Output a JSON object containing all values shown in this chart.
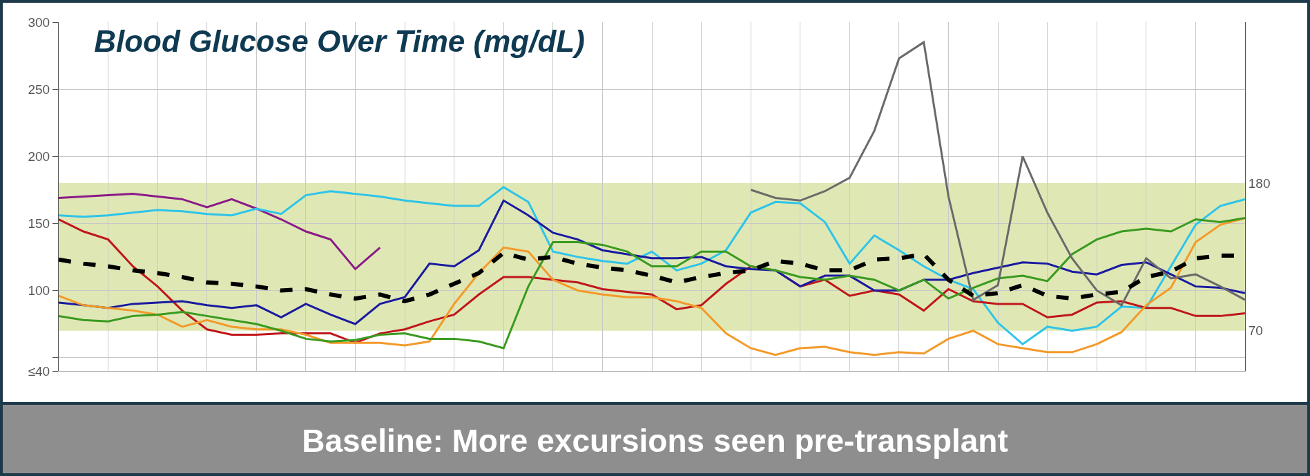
{
  "chart_data": {
    "type": "line",
    "title": "Blood Glucose Over Time (mg/dL)",
    "annotations": [
      "Baseline: More excursions seen pre-transplant"
    ],
    "categories": [
      null,
      null,
      null,
      null,
      null,
      null,
      null,
      null,
      null,
      null,
      null,
      null,
      null,
      null,
      null,
      null,
      null,
      null,
      null,
      null,
      null,
      null,
      null,
      null,
      null,
      null,
      null,
      null,
      null,
      null,
      null,
      null,
      null,
      null,
      null,
      null,
      null,
      null,
      null,
      null,
      null,
      null,
      null,
      null,
      null,
      null,
      null,
      null,
      null
    ],
    "ylim": [
      40,
      300
    ],
    "yticks": [
      {
        "value": 40,
        "label": "≤40"
      },
      {
        "value": 50,
        "label": null
      },
      100,
      150,
      200,
      250,
      300
    ],
    "y2lim": [
      40,
      300
    ],
    "y2ticks": [
      70,
      180
    ],
    "bands": [
      {
        "axis": "y",
        "from": 70,
        "to": 180,
        "color": "#dfe8b4"
      }
    ],
    "grid": true,
    "tick_labels": "y",
    "series": [
      {
        "color": "#8b1a89",
        "values": [
          169,
          170,
          171,
          172,
          170,
          168,
          162,
          168,
          161,
          153,
          144,
          138,
          116,
          132,
          null,
          null,
          null,
          null,
          null,
          null,
          null,
          null,
          null,
          null,
          null,
          null,
          null,
          null,
          null,
          null,
          null,
          null,
          null,
          null,
          null,
          null,
          null,
          null,
          null,
          null,
          null,
          null,
          null,
          null,
          null,
          null,
          null,
          null,
          null
        ]
      },
      {
        "color": "#2ec4ea",
        "values": [
          156,
          155,
          156,
          158,
          160,
          159,
          157,
          156,
          161,
          157,
          171,
          174,
          172,
          170,
          167,
          165,
          163,
          163,
          177,
          166,
          129,
          125,
          122,
          120,
          129,
          115,
          120,
          130,
          158,
          166,
          165,
          151,
          120,
          141,
          130,
          118,
          108,
          101,
          76,
          60,
          73,
          70,
          73,
          88,
          87,
          118,
          149,
          163,
          168
        ]
      },
      {
        "color": "#c0161b",
        "values": [
          153,
          144,
          138,
          118,
          103,
          85,
          71,
          67,
          67,
          68,
          68,
          68,
          61,
          68,
          71,
          77,
          82,
          97,
          110,
          110,
          108,
          106,
          101,
          99,
          97,
          86,
          89,
          105,
          118,
          115,
          103,
          108,
          96,
          100,
          97,
          85,
          101,
          92,
          90,
          90,
          80,
          82,
          91,
          92,
          87,
          87,
          81,
          81,
          83
        ]
      },
      {
        "color": "#1a1aa0",
        "values": [
          91,
          89,
          87,
          90,
          91,
          92,
          89,
          87,
          89,
          80,
          90,
          82,
          75,
          90,
          95,
          120,
          118,
          130,
          167,
          156,
          143,
          138,
          130,
          127,
          124,
          124,
          125,
          118,
          116,
          115,
          103,
          111,
          111,
          100,
          100,
          108,
          108,
          113,
          117,
          121,
          120,
          114,
          112,
          119,
          121,
          112,
          103,
          102,
          98
        ]
      },
      {
        "color": "#f39a2a",
        "values": [
          96,
          89,
          87,
          85,
          82,
          73,
          78,
          73,
          71,
          71,
          67,
          61,
          61,
          61,
          59,
          62,
          90,
          113,
          132,
          129,
          108,
          100,
          97,
          95,
          95,
          92,
          87,
          68,
          57,
          52,
          57,
          58,
          54,
          52,
          54,
          53,
          64,
          70,
          60,
          57,
          54,
          54,
          60,
          69,
          89,
          102,
          136,
          149,
          154
        ]
      },
      {
        "color": "#3a9a1f",
        "values": [
          81,
          78,
          77,
          81,
          82,
          84,
          81,
          78,
          75,
          70,
          64,
          62,
          63,
          67,
          68,
          64,
          64,
          62,
          57,
          103,
          136,
          136,
          134,
          129,
          118,
          118,
          129,
          129,
          118,
          115,
          110,
          108,
          111,
          108,
          100,
          108,
          94,
          102,
          109,
          111,
          107,
          127,
          138,
          144,
          146,
          144,
          153,
          151,
          154
        ]
      },
      {
        "color": "#6a6a6a",
        "values": [
          null,
          null,
          null,
          null,
          null,
          null,
          null,
          null,
          null,
          null,
          null,
          null,
          null,
          null,
          null,
          null,
          null,
          null,
          null,
          null,
          null,
          null,
          null,
          null,
          null,
          null,
          null,
          null,
          175,
          169,
          167,
          174,
          184,
          219,
          273,
          285,
          170,
          93,
          104,
          200,
          158,
          124,
          100,
          89,
          124,
          109,
          112,
          103,
          93
        ]
      },
      {
        "color": "#000000",
        "line_style": "dashed",
        "values": [
          123,
          120,
          118,
          115,
          113,
          110,
          106,
          105,
          103,
          100,
          101,
          97,
          94,
          97,
          92,
          97,
          105,
          113,
          128,
          123,
          125,
          120,
          117,
          115,
          111,
          106,
          110,
          113,
          115,
          122,
          120,
          115,
          115,
          123,
          124,
          127,
          108,
          96,
          98,
          104,
          96,
          94,
          97,
          99,
          110,
          114,
          124,
          126,
          126
        ]
      }
    ]
  }
}
